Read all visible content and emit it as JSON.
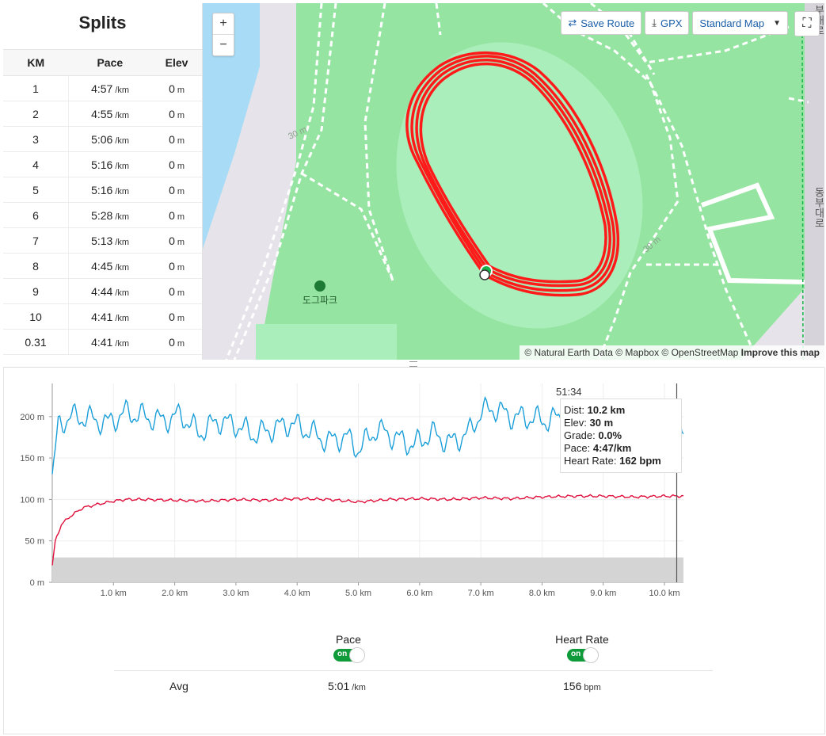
{
  "splits": {
    "title": "Splits",
    "headers": [
      "KM",
      "Pace",
      "Elev"
    ],
    "pace_unit": "/km",
    "elev_unit": "m",
    "rows": [
      {
        "km": "1",
        "pace": "4:57",
        "elev": "0"
      },
      {
        "km": "2",
        "pace": "4:55",
        "elev": "0"
      },
      {
        "km": "3",
        "pace": "5:06",
        "elev": "0"
      },
      {
        "km": "4",
        "pace": "5:16",
        "elev": "0"
      },
      {
        "km": "5",
        "pace": "5:16",
        "elev": "0"
      },
      {
        "km": "6",
        "pace": "5:28",
        "elev": "0"
      },
      {
        "km": "7",
        "pace": "5:13",
        "elev": "0"
      },
      {
        "km": "8",
        "pace": "4:45",
        "elev": "0"
      },
      {
        "km": "9",
        "pace": "4:44",
        "elev": "0"
      },
      {
        "km": "10",
        "pace": "4:41",
        "elev": "0"
      },
      {
        "km": "0.31",
        "pace": "4:41",
        "elev": "0"
      }
    ]
  },
  "map": {
    "zoom_in": "+",
    "zoom_out": "−",
    "save_route": "Save Route",
    "gpx": "GPX",
    "style_select": "Standard Map",
    "labels": {
      "park": "도그파크",
      "road": "동부대로",
      "road2": "부대로",
      "contour1": "30 m",
      "contour2": "30 m"
    },
    "attribution_text": "© Natural Earth Data © Mapbox © OpenStreetMap",
    "attribution_link": "Improve this map",
    "colors": {
      "water": "#a8dcf6",
      "park": "#96e4a2",
      "track_field": "#aaeebb",
      "route": "#ff1a1a",
      "road": "#ffffff",
      "land": "#e6e4ea"
    }
  },
  "chart_data": {
    "type": "line",
    "xlabel": "",
    "ylabel": "",
    "x_ticks": [
      "1.0 km",
      "2.0 km",
      "3.0 km",
      "4.0 km",
      "5.0 km",
      "6.0 km",
      "7.0 km",
      "8.0 km",
      "9.0 km",
      "10.0 km"
    ],
    "y_ticks": [
      "0 m",
      "50 m",
      "100 m",
      "150 m",
      "200 m"
    ],
    "xlim": [
      0,
      10.31
    ],
    "ylim": [
      0,
      240
    ],
    "series": [
      {
        "name": "Pace",
        "color": "#1a9fd9",
        "x": [
          0,
          0.1,
          0.3,
          0.6,
          0.9,
          1.2,
          1.5,
          1.8,
          2.1,
          2.4,
          2.7,
          3.0,
          3.3,
          3.6,
          3.9,
          4.2,
          4.5,
          4.8,
          5.0,
          5.3,
          5.6,
          5.9,
          6.2,
          6.5,
          6.8,
          7.0,
          7.2,
          7.5,
          7.8,
          8.1,
          8.4,
          8.7,
          9.0,
          9.3,
          9.6,
          9.9,
          10.2,
          10.31
        ],
        "y": [
          125,
          190,
          200,
          198,
          192,
          205,
          200,
          195,
          202,
          180,
          195,
          190,
          178,
          185,
          192,
          182,
          170,
          176,
          160,
          185,
          175,
          165,
          180,
          168,
          180,
          205,
          210,
          200,
          198,
          195,
          202,
          196,
          200,
          198,
          205,
          200,
          196,
          195
        ]
      },
      {
        "name": "Heart Rate",
        "color": "#e0103c",
        "x": [
          0,
          0.05,
          0.15,
          0.3,
          0.5,
          0.8,
          1.0,
          1.2,
          1.5,
          2.0,
          2.5,
          3.0,
          3.5,
          4.0,
          4.5,
          5.0,
          5.5,
          6.0,
          6.5,
          7.0,
          7.5,
          8.0,
          8.5,
          9.0,
          9.5,
          10.0,
          10.31
        ],
        "y": [
          20,
          50,
          70,
          80,
          90,
          95,
          98,
          100,
          100,
          99,
          98,
          100,
          99,
          101,
          100,
          97,
          100,
          101,
          100,
          102,
          101,
          103,
          104,
          104,
          103,
          104,
          104
        ]
      },
      {
        "name": "Elevation",
        "color": "#d4d4d4",
        "x": [
          0,
          10.31
        ],
        "y": [
          30,
          30
        ]
      }
    ],
    "cursor": {
      "time": "51:34",
      "dist": "10.2 km",
      "elev": "30 m",
      "grade": "0.0%",
      "pace": "4:47/km",
      "heart_rate": "162 bpm"
    }
  },
  "tooltip": {
    "time": "51:34",
    "dist_label": "Dist:",
    "dist": "10.2 km",
    "elev_label": "Elev:",
    "elev": "30 m",
    "grade_label": "Grade:",
    "grade": "0.0%",
    "pace_label": "Pace:",
    "pace": "4:47/km",
    "hr_label": "Heart Rate:",
    "hr": "162 bpm"
  },
  "summary": {
    "pace_label": "Pace",
    "hr_label": "Heart Rate",
    "toggle_on": "on",
    "avg_label": "Avg",
    "avg_pace": "5:01",
    "avg_pace_unit": "/km",
    "avg_hr": "156",
    "avg_hr_unit": "bpm"
  }
}
